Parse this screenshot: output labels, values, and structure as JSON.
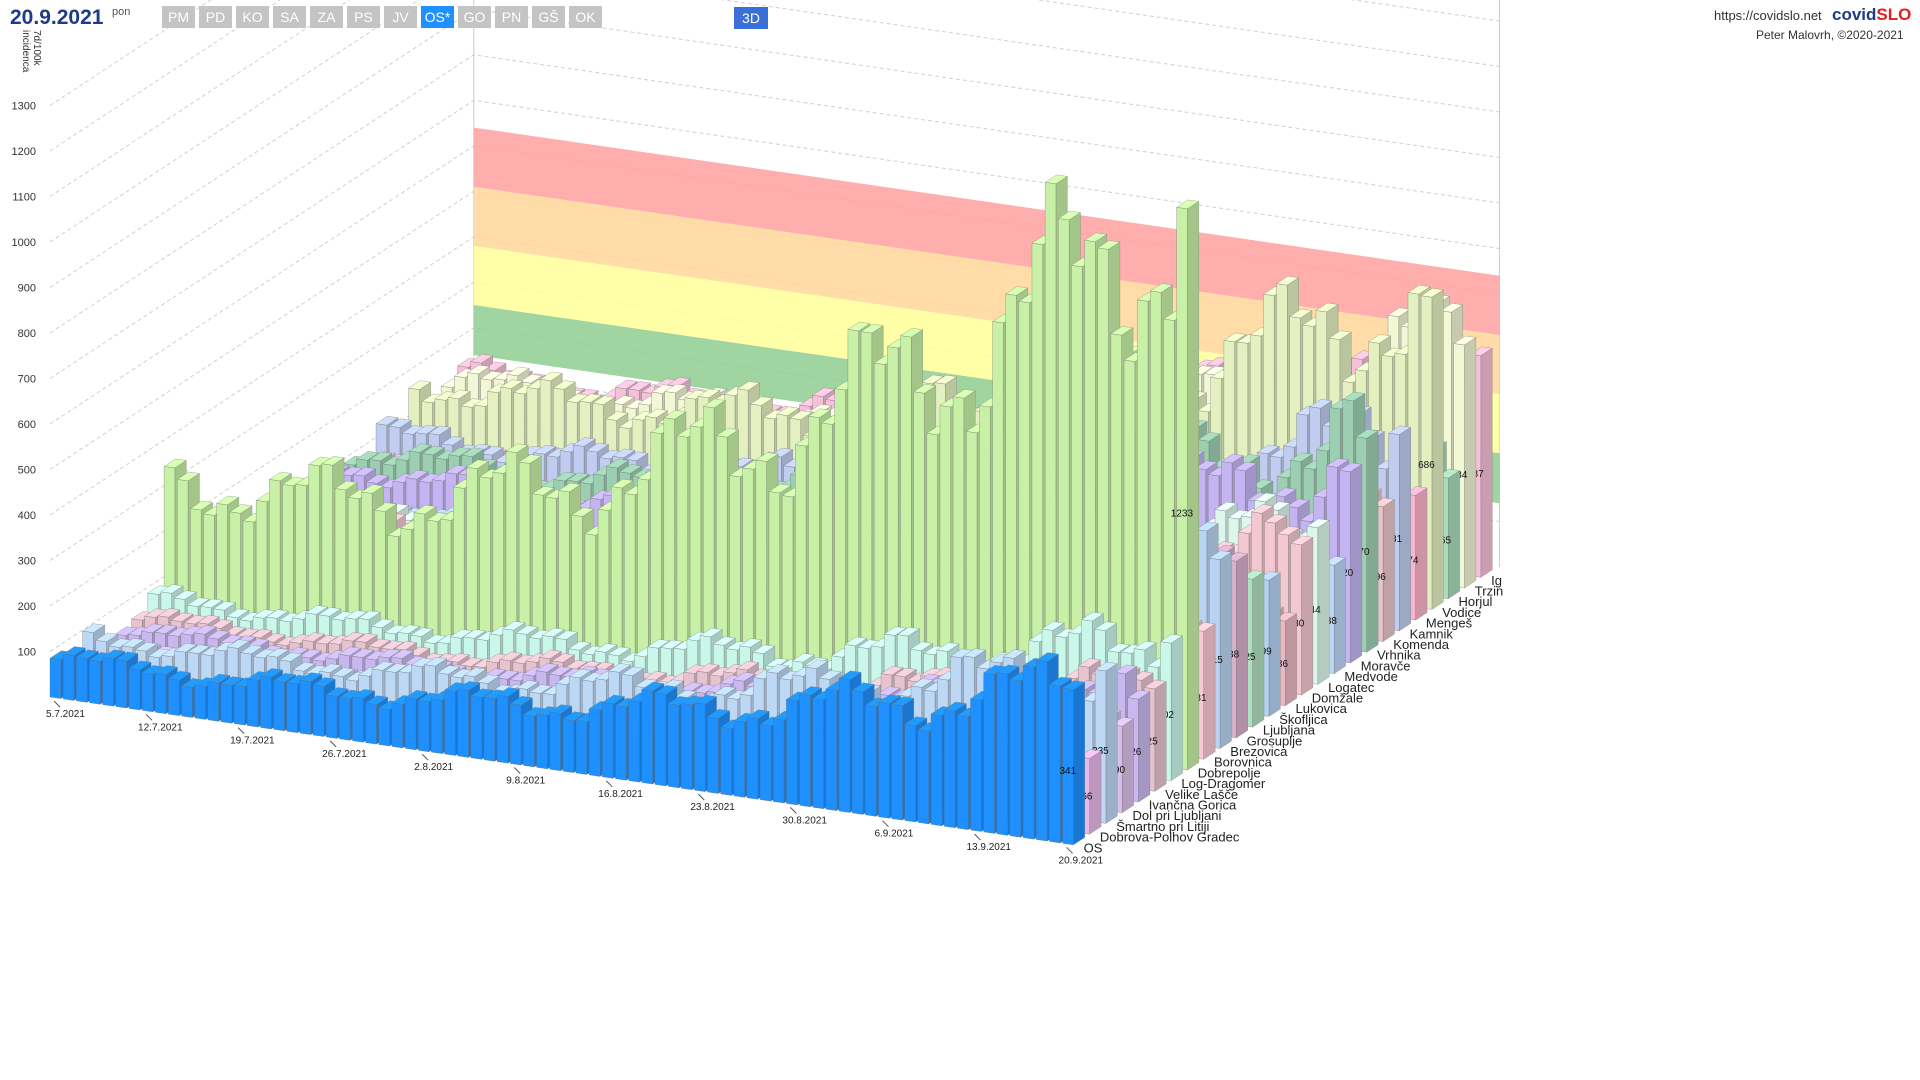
{
  "header": {
    "date": "20.9.2021",
    "weekday": "pon",
    "tabs": [
      {
        "label": "PM",
        "active": false
      },
      {
        "label": "PD",
        "active": false
      },
      {
        "label": "KO",
        "active": false
      },
      {
        "label": "SA",
        "active": false
      },
      {
        "label": "ZA",
        "active": false
      },
      {
        "label": "PS",
        "active": false
      },
      {
        "label": "JV",
        "active": false
      },
      {
        "label": "OS*",
        "active": true
      },
      {
        "label": "GO",
        "active": false
      },
      {
        "label": "PN",
        "active": false
      },
      {
        "label": "GŠ",
        "active": false
      },
      {
        "label": "OK",
        "active": false
      }
    ],
    "mode": "3D",
    "url": "https://covidslo.net",
    "brand_a": "covid",
    "brand_b": "SLO",
    "author": "Peter Malovrh, ©2020-2021"
  },
  "chart_data": {
    "type": "bar",
    "view": "3d",
    "ylabel_line1": "7d/100k",
    "ylabel_line2": "incidenca",
    "y_ticks": [
      100,
      200,
      300,
      400,
      500,
      600,
      700,
      800,
      900,
      1000,
      1100,
      1200,
      1300
    ],
    "ylim": [
      0,
      1400
    ],
    "x_ticks": [
      "5.7.2021",
      "12.7.2021",
      "19.7.2021",
      "26.7.2021",
      "2.8.2021",
      "9.8.2021",
      "16.8.2021",
      "23.8.2021",
      "30.8.2021",
      "6.9.2021",
      "13.9.2021",
      "20.9.2021"
    ],
    "risk_bands": [
      {
        "from": 140,
        "to": 250,
        "color": "#8fcc8f"
      },
      {
        "from": 250,
        "to": 380,
        "color": "#ffff99"
      },
      {
        "from": 380,
        "to": 510,
        "color": "#ffd699"
      },
      {
        "from": 510,
        "to": 640,
        "color": "#ffa0a0"
      }
    ],
    "series": [
      {
        "name": "OS",
        "value": 341,
        "color": "#1e90ff"
      },
      {
        "name": "Dobrova-Polhov Gradec",
        "value": 166,
        "color": "#e8b8e8"
      },
      {
        "name": "Šmartno pri Litiji",
        "value": 335,
        "color": "#bcd8f5"
      },
      {
        "name": "Dol pri Ljubljani",
        "value": 190,
        "color": "#d9bfe8"
      },
      {
        "name": "Ivančna Gorica",
        "value": 226,
        "color": "#c8b8ef"
      },
      {
        "name": "Velike Lašče",
        "value": 225,
        "color": "#e6c3cf"
      },
      {
        "name": "Log-Dragomer",
        "value": 302,
        "color": "#c9f7ea"
      },
      {
        "name": "Dobrepolje",
        "value": 1233,
        "color": "#c8f0a6"
      },
      {
        "name": "Borovnica",
        "value": 281,
        "color": "#f9c8d3"
      },
      {
        "name": "Brezovica",
        "value": 415,
        "color": "#b9d4f2"
      },
      {
        "name": "Grosuplje",
        "value": 388,
        "color": "#d8b0cc"
      },
      {
        "name": "Ljubljana",
        "value": 325,
        "color": "#b0dfc0"
      },
      {
        "name": "Škofljica",
        "value": 299,
        "color": "#b4d2f3"
      },
      {
        "name": "Lukovica",
        "value": 186,
        "color": "#e9b8c2"
      },
      {
        "name": "Domžale",
        "value": 330,
        "color": "#f3c8d0"
      },
      {
        "name": "Logatec",
        "value": 344,
        "color": "#dcf7ec"
      },
      {
        "name": "Medvode",
        "value": 238,
        "color": "#bdd7f6"
      },
      {
        "name": "Moravče",
        "value": 420,
        "color": "#c4b4f2"
      },
      {
        "name": "Vrhnika",
        "value": 470,
        "color": "#9ccfb2"
      },
      {
        "name": "Komenda",
        "value": 296,
        "color": "#e8c5cb"
      },
      {
        "name": "Kamnik",
        "value": 431,
        "color": "#c0cdf0"
      },
      {
        "name": "Mengeš",
        "value": 274,
        "color": "#fab5cd"
      },
      {
        "name": "Vodice",
        "value": 686,
        "color": "#e4f0c0"
      },
      {
        "name": "Horjul",
        "value": 265,
        "color": "#a8dcbc"
      },
      {
        "name": "Trzin",
        "value": 534,
        "color": "#f2f8d6"
      },
      {
        "name": "Ig",
        "value": 487,
        "color": "#f6c0d8"
      }
    ]
  }
}
